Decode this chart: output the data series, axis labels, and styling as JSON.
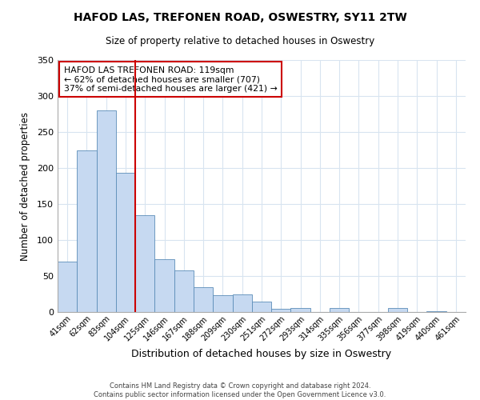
{
  "title": "HAFOD LAS, TREFONEN ROAD, OSWESTRY, SY11 2TW",
  "subtitle": "Size of property relative to detached houses in Oswestry",
  "xlabel": "Distribution of detached houses by size in Oswestry",
  "ylabel": "Number of detached properties",
  "categories": [
    "41sqm",
    "62sqm",
    "83sqm",
    "104sqm",
    "125sqm",
    "146sqm",
    "167sqm",
    "188sqm",
    "209sqm",
    "230sqm",
    "251sqm",
    "272sqm",
    "293sqm",
    "314sqm",
    "335sqm",
    "356sqm",
    "377sqm",
    "398sqm",
    "419sqm",
    "440sqm",
    "461sqm"
  ],
  "values": [
    70,
    224,
    280,
    193,
    135,
    73,
    58,
    34,
    23,
    25,
    15,
    5,
    6,
    0,
    6,
    0,
    0,
    6,
    0,
    1,
    0
  ],
  "bar_color": "#c6d9f1",
  "bar_edge_color": "#5b8db8",
  "reference_line_index": 4,
  "reference_line_color": "#cc0000",
  "annotation_title": "HAFOD LAS TREFONEN ROAD: 119sqm",
  "annotation_line1": "← 62% of detached houses are smaller (707)",
  "annotation_line2": "37% of semi-detached houses are larger (421) →",
  "annotation_box_edge_color": "#cc0000",
  "ylim": [
    0,
    350
  ],
  "yticks": [
    0,
    50,
    100,
    150,
    200,
    250,
    300,
    350
  ],
  "footer_line1": "Contains HM Land Registry data © Crown copyright and database right 2024.",
  "footer_line2": "Contains public sector information licensed under the Open Government Licence v3.0.",
  "bg_color": "#ffffff",
  "grid_color": "#d8e4f0"
}
